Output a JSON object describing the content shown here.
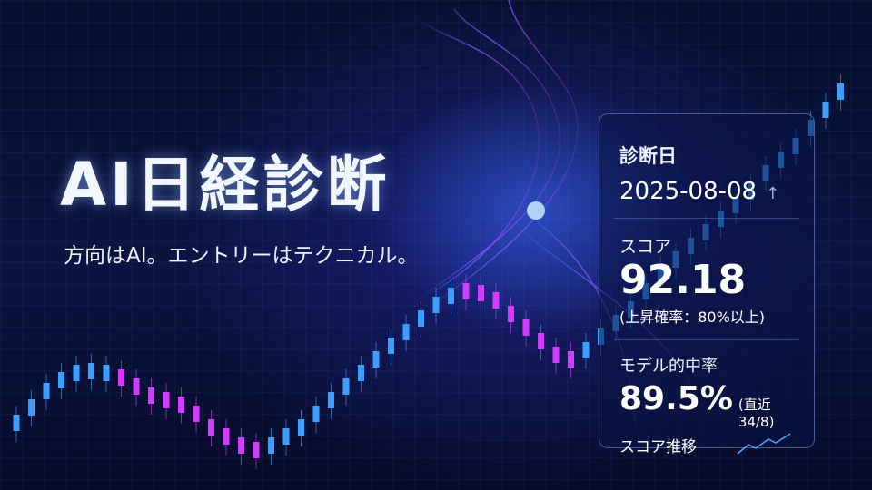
{
  "hero": {
    "title": "AI日経診断",
    "subtitle": "方向はAI。エントリーはテクニカル。"
  },
  "card": {
    "date_label": "診断日",
    "date_value": "2025-08-08",
    "date_trend_icon": "arrow-up-icon",
    "score_label": "スコア",
    "score_value": "92.18",
    "score_note": "(上昇確率：80%以上)",
    "accuracy_label": "モデル的中率",
    "accuracy_value": "89.5%",
    "accuracy_note": "(直近34/8)",
    "trend_label": "スコア推移"
  },
  "colors": {
    "accent_blue": "#3aa0ff",
    "accent_magenta": "#d23cff",
    "background": "#07102e"
  }
}
